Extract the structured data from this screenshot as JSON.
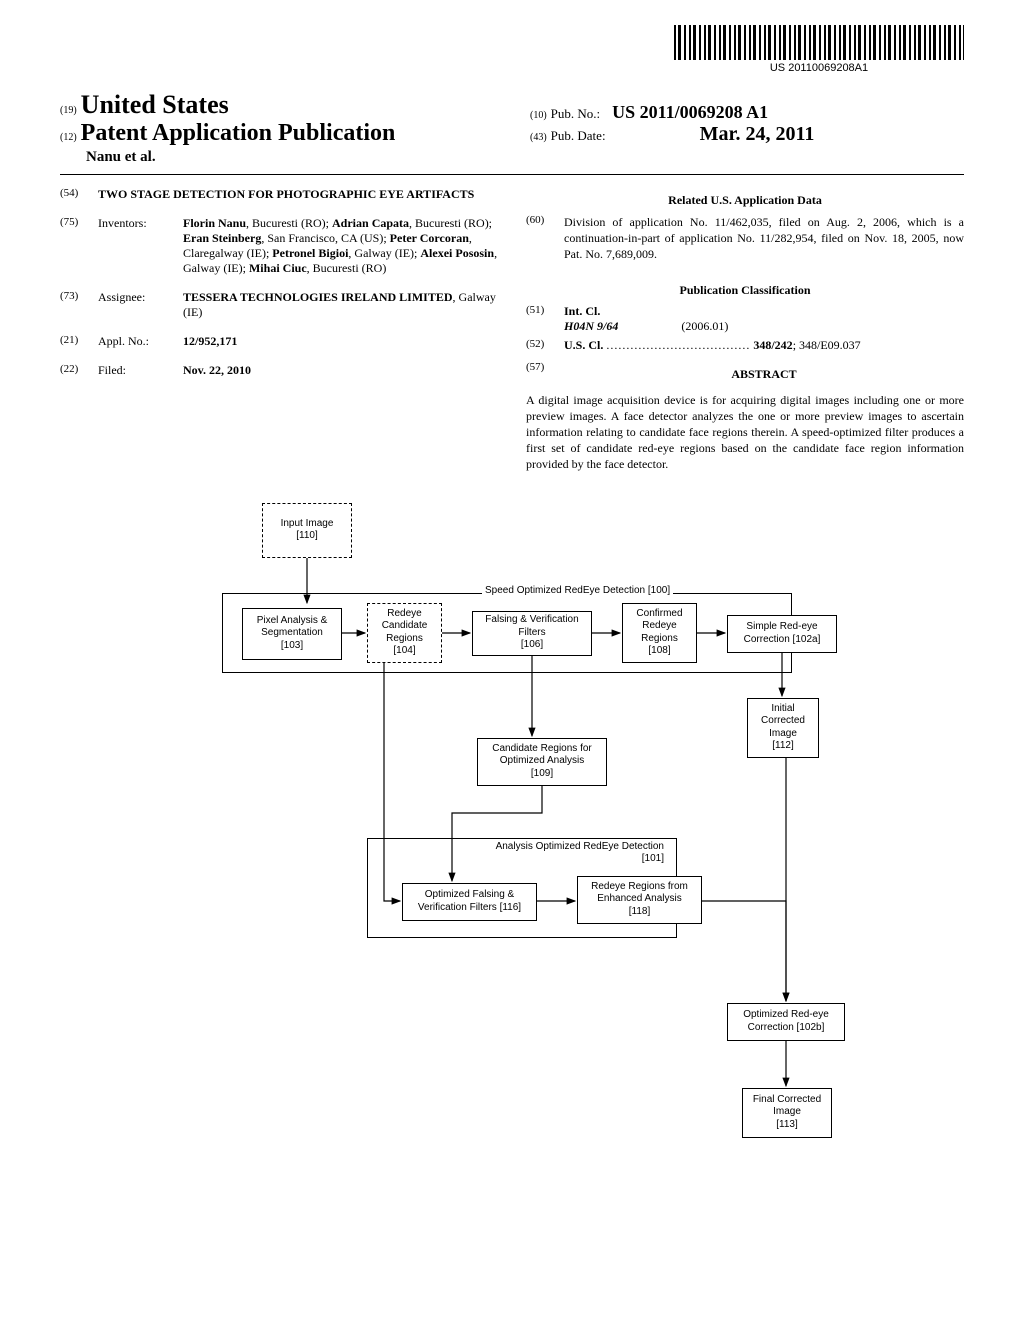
{
  "barcode_text": "US 20110069208A1",
  "header": {
    "code19": "(19)",
    "country": "United States",
    "code12": "(12)",
    "pub_type": "Patent Application Publication",
    "authors": "Nanu et al.",
    "code10": "(10)",
    "pub_no_label": "Pub. No.:",
    "pub_no": "US 2011/0069208 A1",
    "code43": "(43)",
    "pub_date_label": "Pub. Date:",
    "pub_date": "Mar. 24, 2011"
  },
  "left": {
    "code54": "(54)",
    "title": "TWO STAGE DETECTION FOR PHOTOGRAPHIC EYE ARTIFACTS",
    "code75": "(75)",
    "inventors_label": "Inventors:",
    "inventors_html": "<b>Florin Nanu</b>, Bucuresti (RO); <b>Adrian Capata</b>, Bucuresti (RO); <b>Eran Steinberg</b>, San Francisco, CA (US); <b>Peter Corcoran</b>, Claregalway (IE); <b>Petronel Bigioi</b>, Galway (IE); <b>Alexei Pososin</b>, Galway (IE); <b>Mihai Ciuc</b>, Bucuresti (RO)",
    "code73": "(73)",
    "assignee_label": "Assignee:",
    "assignee_html": "<b>TESSERA TECHNOLOGIES IRELAND LIMITED</b>, Galway (IE)",
    "code21": "(21)",
    "applno_label": "Appl. No.:",
    "applno": "12/952,171",
    "code22": "(22)",
    "filed_label": "Filed:",
    "filed": "Nov. 22, 2010"
  },
  "right": {
    "related_hdr": "Related U.S. Application Data",
    "code60": "(60)",
    "related_text": "Division of application No. 11/462,035, filed on Aug. 2, 2006, which is a continuation-in-part of application No. 11/282,954, filed on Nov. 18, 2005, now Pat. No. 7,689,009.",
    "pubclass_hdr": "Publication Classification",
    "code51": "(51)",
    "intcl_label": "Int. Cl.",
    "intcl_code": "H04N 9/64",
    "intcl_date": "(2006.01)",
    "code52": "(52)",
    "uscl_label": "U.S. Cl.",
    "uscl_dots": "....................................",
    "uscl_val": "348/242",
    "uscl_extra": "; 348/E09.037",
    "code57": "(57)",
    "abstract_hdr": "ABSTRACT",
    "abstract_text": "A digital image acquisition device is for acquiring digital images including one or more preview images. A face detector analyzes the one or more preview images to ascertain information relating to candidate face regions therein. A speed-optimized filter produces a first set of candidate red-eye regions based on the candidate face region information provided by the face detector."
  },
  "flow": {
    "input": "Input Image\n[110]",
    "speed_container": "Speed Optimized RedEye Detection [100]",
    "pixel": "Pixel Analysis &\nSegmentation\n[103]",
    "redeye_cand": "Redeye\nCandidate\nRegions\n[104]",
    "falsing": "Falsing & Verification\nFilters\n[106]",
    "confirmed": "Confirmed\nRedeye\nRegions\n[108]",
    "simple_corr": "Simple Red-eye\nCorrection [102a]",
    "initial_img": "Initial\nCorrected\nImage\n[112]",
    "cand_opt": "Candidate Regions for\nOptimized Analysis\n[109]",
    "analysis_container": "Analysis Optimized RedEye Detection\n[101]",
    "opt_falsing": "Optimized Falsing &\nVerification Filters  [116]",
    "enhanced": "Redeye Regions from\nEnhanced Analysis\n[118]",
    "opt_corr": "Optimized Red-eye\nCorrection [102b]",
    "final_img": "Final Corrected\nImage\n[113]",
    "arrow_color": "#000000"
  }
}
